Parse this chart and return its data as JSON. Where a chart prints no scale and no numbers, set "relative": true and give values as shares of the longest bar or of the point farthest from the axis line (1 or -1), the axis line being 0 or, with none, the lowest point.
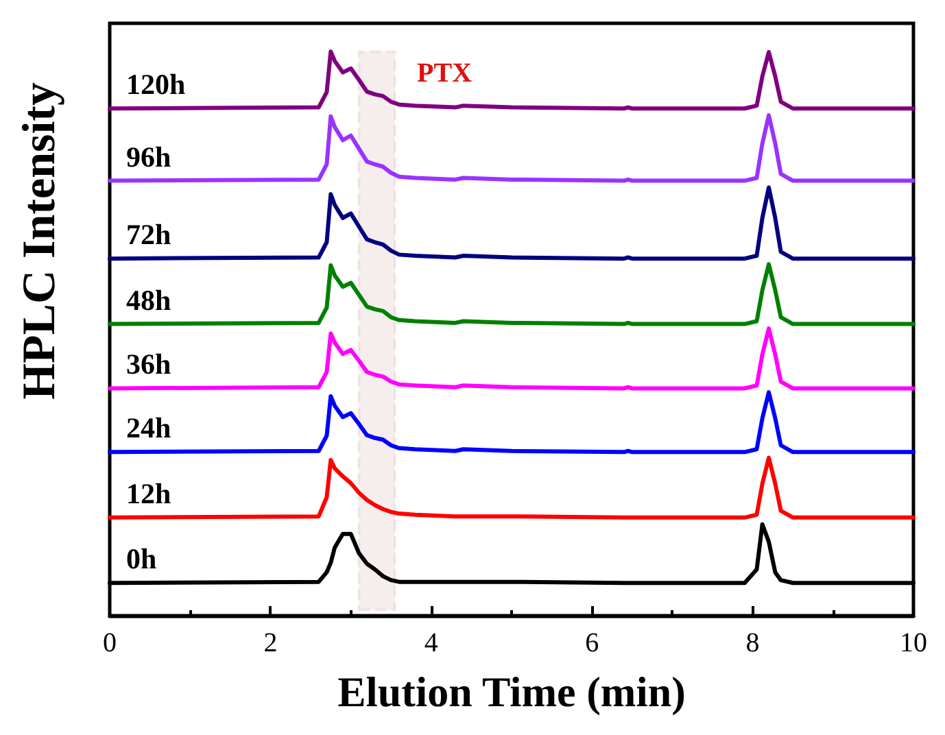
{
  "chart_data": {
    "type": "line",
    "relative": true,
    "xlabel": "Elution Time (min)",
    "ylabel": "HPLC Intensity",
    "x": [
      0,
      2.6,
      2.7,
      2.75,
      2.8,
      2.9,
      3.0,
      3.1,
      3.2,
      3.3,
      3.4,
      3.5,
      3.6,
      3.8,
      4.3,
      4.4,
      5,
      6.4,
      6.45,
      6.5,
      7.9,
      8.05,
      8.12,
      8.2,
      8.28,
      8.35,
      8.5,
      10
    ],
    "xlim": [
      0,
      10
    ],
    "xticks": [
      0,
      2,
      4,
      6,
      8,
      10
    ],
    "tick_labels": "x",
    "grid": false,
    "legend": false,
    "marker": "none",
    "line_style": "solid",
    "series": [
      {
        "name": "0h",
        "color": "#000000",
        "values": [
          0.058,
          0.06,
          0.077,
          0.094,
          0.121,
          0.145,
          0.145,
          0.111,
          0.092,
          0.082,
          0.07,
          0.063,
          0.06,
          0.06,
          0.06,
          0.06,
          0.06,
          0.058,
          0.058,
          0.058,
          0.058,
          0.082,
          0.162,
          0.131,
          0.077,
          0.063,
          0.058,
          0.058
        ]
      },
      {
        "name": "12h",
        "color": "#ff0000",
        "values": [
          0.174,
          0.176,
          0.21,
          0.276,
          0.261,
          0.247,
          0.235,
          0.218,
          0.205,
          0.196,
          0.189,
          0.184,
          0.181,
          0.179,
          0.176,
          0.176,
          0.176,
          0.174,
          0.174,
          0.174,
          0.174,
          0.179,
          0.234,
          0.28,
          0.234,
          0.186,
          0.174,
          0.174
        ]
      },
      {
        "name": "24h",
        "color": "#0000ff",
        "values": [
          0.29,
          0.292,
          0.319,
          0.389,
          0.372,
          0.352,
          0.359,
          0.34,
          0.32,
          0.315,
          0.312,
          0.302,
          0.297,
          0.295,
          0.292,
          0.295,
          0.292,
          0.29,
          0.292,
          0.29,
          0.29,
          0.295,
          0.35,
          0.396,
          0.35,
          0.302,
          0.29,
          0.29
        ]
      },
      {
        "name": "36h",
        "color": "#ff00ff",
        "values": [
          0.403,
          0.405,
          0.432,
          0.5,
          0.484,
          0.464,
          0.471,
          0.452,
          0.432,
          0.427,
          0.424,
          0.415,
          0.41,
          0.408,
          0.405,
          0.408,
          0.405,
          0.403,
          0.405,
          0.403,
          0.403,
          0.408,
          0.463,
          0.509,
          0.463,
          0.415,
          0.403,
          0.403
        ]
      },
      {
        "name": "48h",
        "color": "#008000",
        "values": [
          0.517,
          0.519,
          0.546,
          0.621,
          0.603,
          0.583,
          0.59,
          0.569,
          0.548,
          0.543,
          0.54,
          0.529,
          0.524,
          0.522,
          0.519,
          0.522,
          0.519,
          0.517,
          0.519,
          0.517,
          0.517,
          0.522,
          0.577,
          0.623,
          0.577,
          0.529,
          0.517,
          0.517
        ]
      },
      {
        "name": "72h",
        "color": "#000080",
        "values": [
          0.633,
          0.635,
          0.662,
          0.747,
          0.728,
          0.705,
          0.713,
          0.69,
          0.667,
          0.662,
          0.658,
          0.647,
          0.64,
          0.638,
          0.635,
          0.638,
          0.635,
          0.633,
          0.635,
          0.633,
          0.633,
          0.638,
          0.705,
          0.759,
          0.705,
          0.645,
          0.633,
          0.633
        ]
      },
      {
        "name": "96h",
        "color": "#9933ff",
        "values": [
          0.771,
          0.773,
          0.8,
          0.885,
          0.866,
          0.843,
          0.851,
          0.828,
          0.805,
          0.8,
          0.796,
          0.785,
          0.778,
          0.776,
          0.773,
          0.776,
          0.773,
          0.771,
          0.773,
          0.771,
          0.771,
          0.776,
          0.837,
          0.887,
          0.837,
          0.783,
          0.771,
          0.771
        ]
      },
      {
        "name": "120h",
        "color": "#800080",
        "values": [
          0.899,
          0.901,
          0.928,
          1.0,
          0.983,
          0.963,
          0.97,
          0.95,
          0.929,
          0.924,
          0.921,
          0.911,
          0.906,
          0.904,
          0.901,
          0.904,
          0.901,
          0.899,
          0.901,
          0.899,
          0.899,
          0.904,
          0.956,
          0.999,
          0.956,
          0.911,
          0.899,
          0.899
        ]
      }
    ],
    "bands": [
      {
        "axis": "x",
        "from": 3.1,
        "to": 3.55,
        "label": "PTX",
        "color": "#8b1a1a"
      }
    ]
  }
}
